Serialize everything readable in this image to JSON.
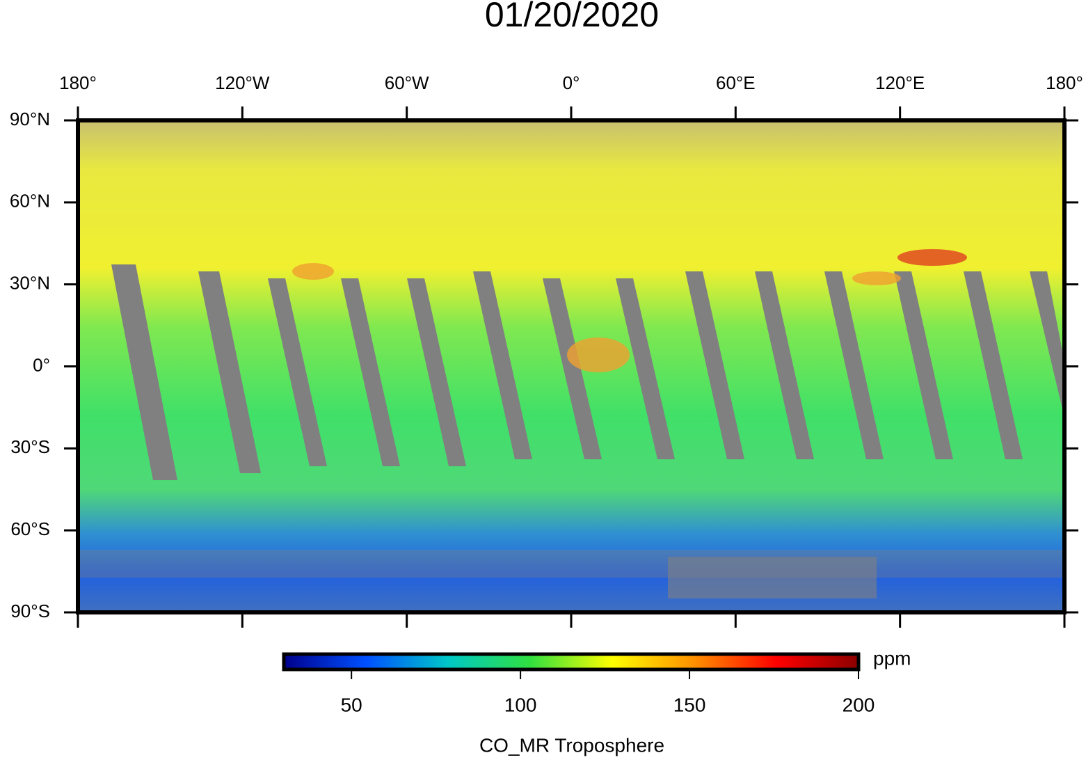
{
  "title": "01/20/2020",
  "map": {
    "lonlim": [
      -180,
      180
    ],
    "latlim": [
      -90,
      90
    ],
    "lonticks": [
      {
        "value": -180,
        "label": "180°"
      },
      {
        "value": -120,
        "label": "120°W"
      },
      {
        "value": -60,
        "label": "60°W"
      },
      {
        "value": 0,
        "label": "0°"
      },
      {
        "value": 60,
        "label": "60°E"
      },
      {
        "value": 120,
        "label": "120°E"
      },
      {
        "value": 180,
        "label": "180°"
      }
    ],
    "latticks": [
      {
        "value": 90,
        "label": "90°N"
      },
      {
        "value": 60,
        "label": "60°N"
      },
      {
        "value": 30,
        "label": "30°N"
      },
      {
        "value": 0,
        "label": "0°"
      },
      {
        "value": -30,
        "label": "30°S"
      },
      {
        "value": -60,
        "label": "60°S"
      },
      {
        "value": -90,
        "label": "90°S"
      }
    ]
  },
  "colorbar": {
    "lim": [
      30,
      200
    ],
    "ticks": [
      50,
      100,
      150,
      200
    ],
    "colors": [
      "#00008c",
      "#0050ff",
      "#00c8c8",
      "#30e040",
      "#ffff00",
      "#ff9000",
      "#ff0000",
      "#8c0000"
    ],
    "unit": "ppm",
    "label": "CO_MR Troposphere"
  }
}
